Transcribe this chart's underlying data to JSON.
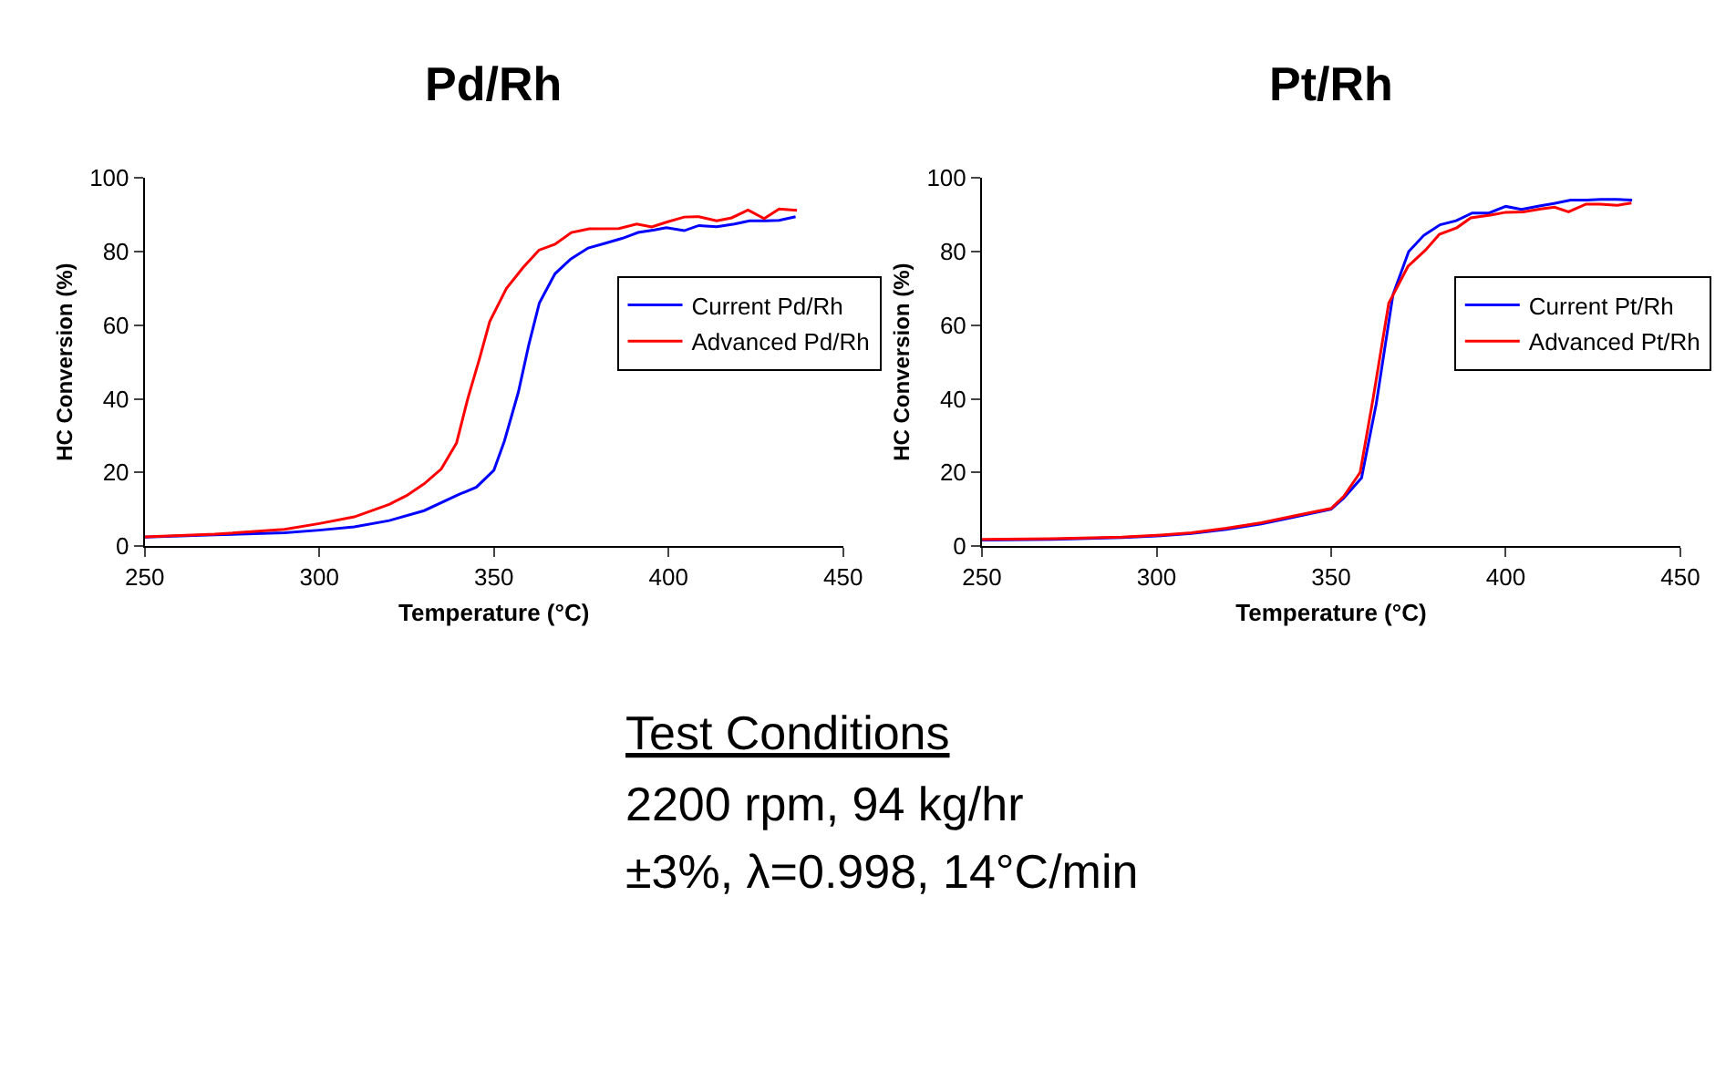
{
  "chart_data": [
    {
      "type": "line",
      "title": "Pd/Rh",
      "xlabel": "Temperature (°C)",
      "ylabel": "HC Conversion (%)",
      "xlim": [
        250,
        450
      ],
      "xticks": [
        250,
        300,
        350,
        400,
        450
      ],
      "ylim": [
        0,
        100
      ],
      "yticks": [
        0,
        20,
        40,
        60,
        80,
        100
      ],
      "legend": "right",
      "series": [
        {
          "name": "Current Pd/Rh",
          "color": "#0000ff",
          "x": [
            250,
            270,
            290,
            300,
            310,
            320,
            330,
            340,
            345,
            350,
            353,
            357,
            360,
            363,
            367.5,
            372,
            377,
            382,
            386.7,
            391.3,
            396,
            399.4,
            404.5,
            408.7,
            413.8,
            418.9,
            423.2,
            427.9,
            431.7,
            436.4
          ],
          "values": [
            2.4,
            3,
            3.6,
            4.3,
            5.2,
            6.9,
            9.6,
            14,
            16,
            20.6,
            28.5,
            41.8,
            54.7,
            66,
            74,
            78,
            81,
            82.3,
            83.6,
            85.2,
            85.9,
            86.5,
            85.7,
            87.1,
            86.8,
            87.5,
            88.4,
            88.4,
            88.5,
            89.5
          ]
        },
        {
          "name": "Advanced Pd/Rh",
          "color": "#ff0000",
          "x": [
            250,
            270,
            290,
            300,
            310,
            320,
            325,
            330,
            334.9,
            339.3,
            342.5,
            345.9,
            348.8,
            353.6,
            358.3,
            362.9,
            367.5,
            372.2,
            377.3,
            385.8,
            390.9,
            395.2,
            399.4,
            404.5,
            408.7,
            413.8,
            418.1,
            422.8,
            427.4,
            431.7,
            436.8
          ],
          "values": [
            2.5,
            3.2,
            4.5,
            6.1,
            7.9,
            11.3,
            13.7,
            16.9,
            20.9,
            28,
            40,
            51,
            61,
            70,
            75.6,
            80.4,
            82,
            85.2,
            86.2,
            86.3,
            87.5,
            86.7,
            88,
            89.4,
            89.5,
            88.4,
            89.2,
            91.3,
            89,
            91.6,
            91.2
          ]
        }
      ]
    },
    {
      "type": "line",
      "title": "Pt/Rh",
      "xlabel": "Temperature (°C)",
      "ylabel": "HC Conversion (%)",
      "xlim": [
        250,
        450
      ],
      "xticks": [
        250,
        300,
        350,
        400,
        450
      ],
      "ylim": [
        0,
        100
      ],
      "yticks": [
        0,
        20,
        40,
        60,
        80,
        100
      ],
      "legend": "right",
      "series": [
        {
          "name": "Current Pt/Rh",
          "color": "#0000ff",
          "x": [
            250,
            270,
            290,
            300,
            310,
            320,
            330,
            340,
            350,
            353.6,
            358.7,
            362.9,
            367.7,
            372.2,
            376.5,
            381.2,
            385.8,
            390.4,
            395.2,
            400,
            404.5,
            409.6,
            413.8,
            418.6,
            423.2,
            427.4,
            431.7,
            436.2
          ],
          "values": [
            1.6,
            1.8,
            2.3,
            2.7,
            3.4,
            4.5,
            6,
            8,
            10,
            13,
            18.5,
            38.6,
            68.3,
            80,
            84.4,
            87.3,
            88.4,
            90.5,
            90.5,
            92.3,
            91.5,
            92.4,
            93.1,
            94,
            94,
            94.2,
            94.2,
            94
          ]
        },
        {
          "name": "Advanced Pt/Rh",
          "color": "#ff0000",
          "x": [
            250,
            270,
            290,
            300,
            310,
            320,
            330,
            340,
            350,
            353.6,
            358.3,
            362,
            366.5,
            372,
            377,
            381,
            386,
            390,
            396,
            400,
            405,
            410,
            414,
            418,
            423,
            427,
            432,
            436
          ],
          "values": [
            1.8,
            2,
            2.4,
            2.9,
            3.6,
            4.8,
            6.3,
            8.3,
            10.2,
            13.5,
            20,
            40,
            66,
            76,
            80.4,
            84.7,
            86.5,
            89.2,
            90,
            90.7,
            90.8,
            91.6,
            92.1,
            90.8,
            92.9,
            92.9,
            92.6,
            93.2
          ]
        }
      ]
    },
    {
      "type": "other",
      "annotations": [
        "Test Conditions",
        "2200 rpm, 94 kg/hr",
        "±3%, λ=0.998, 14°C/min"
      ]
    }
  ]
}
